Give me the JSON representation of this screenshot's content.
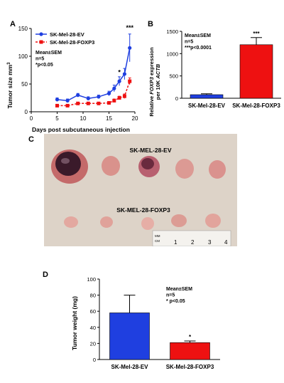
{
  "panels": {
    "A": "A",
    "B": "B",
    "C": "C",
    "D": "D"
  },
  "chart_data": [
    {
      "panel": "A",
      "type": "line",
      "xlabel": "Days post subcutaneous injection",
      "ylabel": "Tumor size mm",
      "ylabel_sup": "3",
      "xlim": [
        0,
        20
      ],
      "ylim": [
        0,
        150
      ],
      "xticks": [
        0,
        5,
        10,
        15,
        20
      ],
      "yticks": [
        0,
        50,
        100,
        150
      ],
      "legend_position": "top-left",
      "series": [
        {
          "name": "SK-Mel-28-EV",
          "color": "#1f3fe0",
          "marker": "circle",
          "x": [
            5,
            7,
            9,
            11,
            13,
            15,
            16,
            17,
            18,
            19
          ],
          "y": [
            22,
            20,
            30,
            24,
            27,
            33,
            42,
            55,
            68,
            115
          ],
          "err": [
            3,
            3,
            3,
            3,
            3,
            4,
            6,
            8,
            10,
            25
          ]
        },
        {
          "name": "SK-Mel-28-FOXP3",
          "color": "#ee1111",
          "marker": "square",
          "x": [
            5,
            7,
            9,
            11,
            13,
            15,
            16,
            17,
            18,
            19
          ],
          "y": [
            11,
            11,
            15,
            15,
            15,
            16,
            20,
            25,
            28,
            55
          ],
          "err": [
            2,
            2,
            2,
            2,
            2,
            2,
            3,
            3,
            4,
            6
          ]
        }
      ],
      "annotation_lines": [
        "Mean±SEM",
        "n=5",
        "*p<0.05"
      ],
      "significance": [
        {
          "x": 17,
          "y": 65,
          "text": "*"
        },
        {
          "x": 19,
          "y": 145,
          "text": "***"
        }
      ]
    },
    {
      "panel": "B",
      "type": "bar",
      "categories": [
        "SK-Mel-28-EV",
        "SK-Mel-28-FOXP3"
      ],
      "values": [
        80,
        1200
      ],
      "errors": [
        20,
        160
      ],
      "colors": [
        "#1f3fe0",
        "#ee1111"
      ],
      "ylabel_line1_pre": "Relative ",
      "ylabel_line1_italic": "FOXP3",
      "ylabel_line1_post": " expression",
      "ylabel_line2_pre": "per 10K ",
      "ylabel_line2_italic": "ACTB",
      "ylim": [
        0,
        1500
      ],
      "yticks": [
        0,
        500,
        1000,
        1500
      ],
      "annotation_lines": [
        "Mean±SEM",
        "n=5",
        "***p<0.0001"
      ],
      "significance": [
        {
          "index": 1,
          "text": "***"
        }
      ]
    },
    {
      "panel": "D",
      "type": "bar",
      "categories": [
        "SK-Mel-28-EV",
        "SK-Mel-28-FOXP3"
      ],
      "values": [
        58,
        21
      ],
      "errors": [
        22,
        2
      ],
      "colors": [
        "#1f3fe0",
        "#ee1111"
      ],
      "ylabel": "Tumor weight (mg)",
      "ylim": [
        0,
        100
      ],
      "yticks": [
        0,
        20,
        40,
        60,
        80,
        100
      ],
      "annotation_lines": [
        "Mean±SEM",
        "n=5",
        "* p<0.05"
      ],
      "significance": [
        {
          "index": 1,
          "text": "*"
        }
      ]
    }
  ],
  "photo": {
    "label_top": "SK-MEL-28-EV",
    "label_bottom": "SK-MEL-28-FOXP3",
    "ruler_unit": [
      "MM",
      "CM"
    ],
    "ruler_numbers": [
      "1",
      "2",
      "3",
      "4"
    ],
    "background_color": "#d9cfc3",
    "tumor_color": "#d98a8a"
  }
}
